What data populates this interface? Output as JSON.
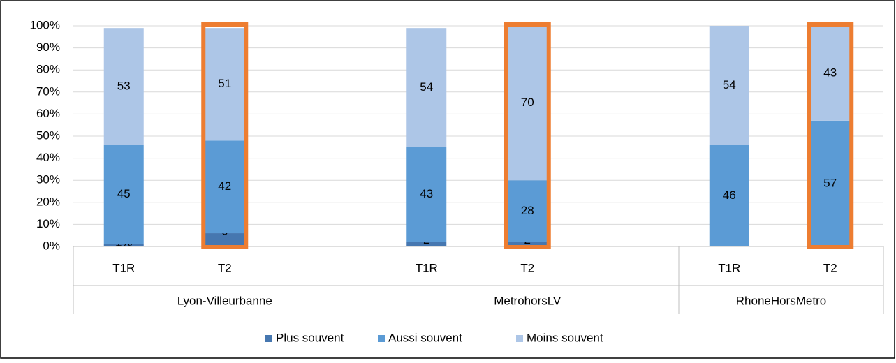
{
  "chart_data": {
    "type": "stacked_bar",
    "categories": [
      "T1R",
      "T2",
      "T1R",
      "T2",
      "T1R",
      "T2"
    ],
    "groups": [
      "Lyon-Villeurbanne",
      "MetrohorsLV",
      "RhoneHorsMetro"
    ],
    "series": [
      {
        "name": "Plus souvent",
        "color": "#4677b0",
        "values": [
          1,
          6,
          2,
          2,
          0,
          0
        ],
        "value_labels": [
          "1%",
          "6",
          "2",
          "2",
          null,
          null
        ]
      },
      {
        "name": "Aussi souvent",
        "color": "#5b9bd5",
        "values": [
          45,
          42,
          43,
          28,
          46,
          57
        ]
      },
      {
        "name": "Moins souvent",
        "color": "#adc6e7",
        "values": [
          53,
          51,
          54,
          70,
          54,
          43
        ]
      }
    ],
    "ylim": [
      0,
      100
    ],
    "yticks": [
      {
        "value": 0,
        "label": "0%"
      },
      {
        "value": 10,
        "label": "10%"
      },
      {
        "value": 20,
        "label": "20%"
      },
      {
        "value": 30,
        "label": "30%"
      },
      {
        "value": 40,
        "label": "40%"
      },
      {
        "value": 50,
        "label": "50%"
      },
      {
        "value": 60,
        "label": "60%"
      },
      {
        "value": 70,
        "label": "70%"
      },
      {
        "value": 80,
        "label": "80%"
      },
      {
        "value": 90,
        "label": "90%"
      },
      {
        "value": 100,
        "label": "100%"
      }
    ],
    "grid": true,
    "legend": "bottom",
    "highlighted": [
      false,
      true,
      false,
      true,
      false,
      true
    ],
    "highlight_color": "#ed7d31"
  }
}
